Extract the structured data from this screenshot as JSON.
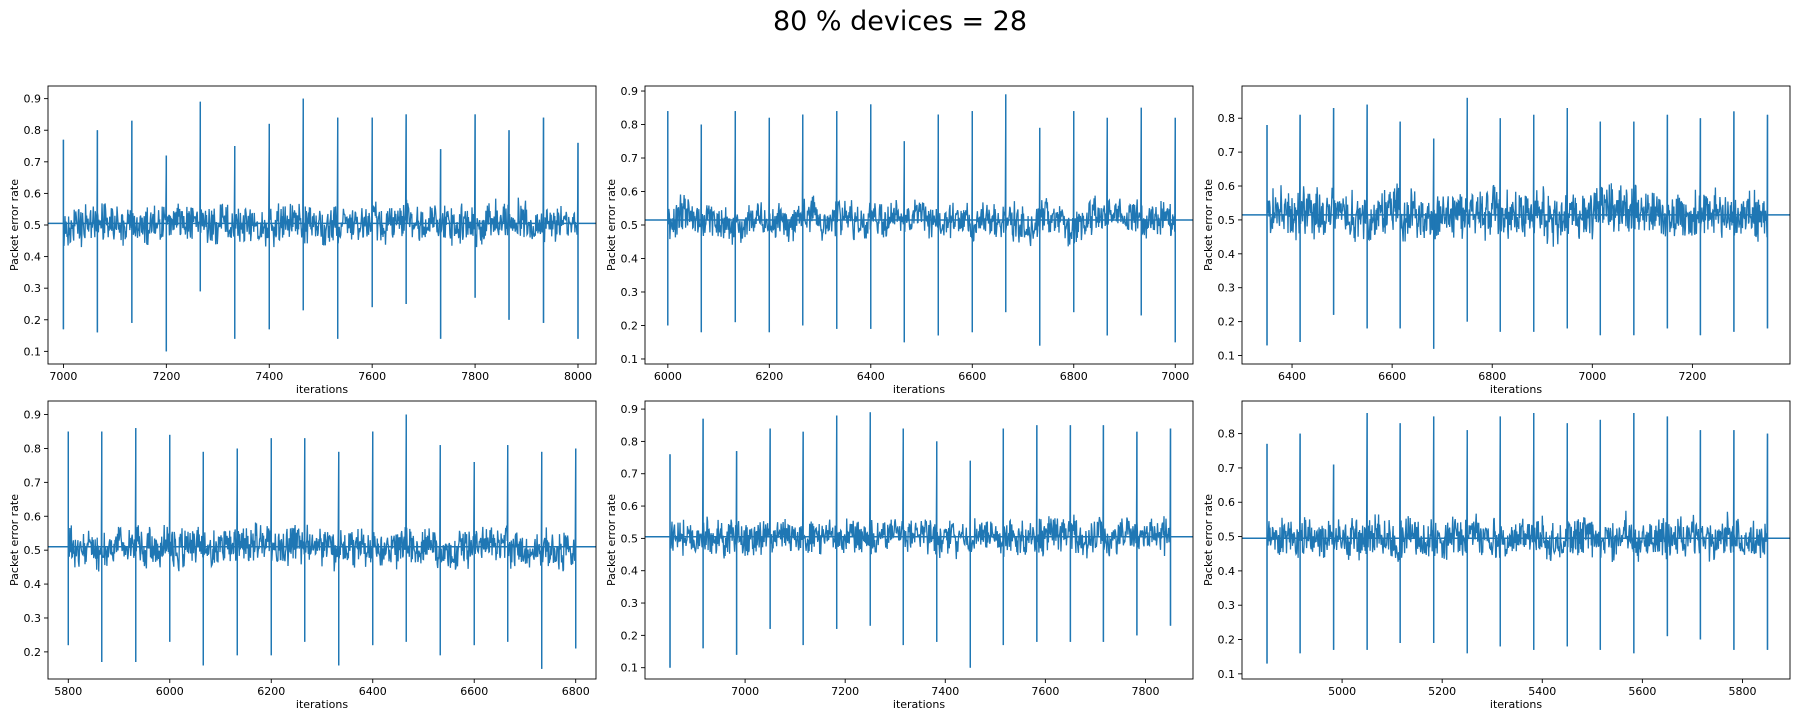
{
  "figure": {
    "title": "80 % devices = 28"
  },
  "colors": {
    "series": "#1f77b4",
    "axis": "#000000",
    "background": "#ffffff"
  },
  "chart_data": [
    {
      "type": "line",
      "xlabel": "iterations",
      "ylabel": "Packet error rate",
      "xlim": [
        6970,
        8035
      ],
      "ylim": [
        0.06,
        0.94
      ],
      "xticks": [
        7000,
        7200,
        7400,
        7600,
        7800,
        8000
      ],
      "yticks": [
        0.1,
        0.2,
        0.3,
        0.4,
        0.5,
        0.6,
        0.7,
        0.8,
        0.9
      ],
      "ytick_labels": [
        "0.1",
        "0.2",
        "0.3",
        "0.4",
        "0.5",
        "0.6",
        "0.7",
        "0.8",
        "0.9"
      ],
      "baseline": 0.505,
      "noise_band": [
        0.43,
        0.63
      ],
      "n_points": 1000,
      "spikes": [
        {
          "x": 7000,
          "low": 0.17,
          "high": 0.77
        },
        {
          "x": 7066,
          "low": 0.16,
          "high": 0.8
        },
        {
          "x": 7133,
          "low": 0.19,
          "high": 0.83
        },
        {
          "x": 7200,
          "low": 0.1,
          "high": 0.72
        },
        {
          "x": 7266,
          "low": 0.29,
          "high": 0.89
        },
        {
          "x": 7333,
          "low": 0.14,
          "high": 0.75
        },
        {
          "x": 7400,
          "low": 0.17,
          "high": 0.82
        },
        {
          "x": 7466,
          "low": 0.23,
          "high": 0.9
        },
        {
          "x": 7533,
          "low": 0.14,
          "high": 0.84
        },
        {
          "x": 7600,
          "low": 0.24,
          "high": 0.84
        },
        {
          "x": 7666,
          "low": 0.25,
          "high": 0.85
        },
        {
          "x": 7733,
          "low": 0.14,
          "high": 0.74
        },
        {
          "x": 7800,
          "low": 0.27,
          "high": 0.85
        },
        {
          "x": 7866,
          "low": 0.2,
          "high": 0.8
        },
        {
          "x": 7933,
          "low": 0.19,
          "high": 0.84
        },
        {
          "x": 8000,
          "low": 0.14,
          "high": 0.76
        }
      ]
    },
    {
      "type": "line",
      "xlabel": "iterations",
      "ylabel": "Packet error rate",
      "xlim": [
        5955,
        7035
      ],
      "ylim": [
        0.085,
        0.915
      ],
      "xticks": [
        6000,
        6200,
        6400,
        6600,
        6800,
        7000
      ],
      "yticks": [
        0.1,
        0.2,
        0.3,
        0.4,
        0.5,
        0.6,
        0.7,
        0.8,
        0.9
      ],
      "ytick_labels": [
        "0.1",
        "0.2",
        "0.3",
        "0.4",
        "0.5",
        "0.6",
        "0.7",
        "0.8",
        "0.9"
      ],
      "baseline": 0.515,
      "noise_band": [
        0.43,
        0.61
      ],
      "n_points": 1000,
      "spikes": [
        {
          "x": 6000,
          "low": 0.2,
          "high": 0.84
        },
        {
          "x": 6066,
          "low": 0.18,
          "high": 0.8
        },
        {
          "x": 6133,
          "low": 0.21,
          "high": 0.84
        },
        {
          "x": 6200,
          "low": 0.18,
          "high": 0.82
        },
        {
          "x": 6266,
          "low": 0.2,
          "high": 0.83
        },
        {
          "x": 6333,
          "low": 0.19,
          "high": 0.84
        },
        {
          "x": 6400,
          "low": 0.19,
          "high": 0.86
        },
        {
          "x": 6466,
          "low": 0.15,
          "high": 0.75
        },
        {
          "x": 6533,
          "low": 0.17,
          "high": 0.83
        },
        {
          "x": 6600,
          "low": 0.18,
          "high": 0.84
        },
        {
          "x": 6666,
          "low": 0.24,
          "high": 0.89
        },
        {
          "x": 6733,
          "low": 0.14,
          "high": 0.79
        },
        {
          "x": 6800,
          "low": 0.24,
          "high": 0.84
        },
        {
          "x": 6866,
          "low": 0.17,
          "high": 0.82
        },
        {
          "x": 6933,
          "low": 0.23,
          "high": 0.85
        },
        {
          "x": 7000,
          "low": 0.15,
          "high": 0.82
        }
      ]
    },
    {
      "type": "line",
      "xlabel": "iterations",
      "ylabel": "Packet error rate",
      "xlim": [
        6300,
        7395
      ],
      "ylim": [
        0.075,
        0.895
      ],
      "xticks": [
        6400,
        6600,
        6800,
        7000,
        7200
      ],
      "yticks": [
        0.1,
        0.2,
        0.3,
        0.4,
        0.5,
        0.6,
        0.7,
        0.8
      ],
      "ytick_labels": [
        "0.1",
        "0.2",
        "0.3",
        "0.4",
        "0.5",
        "0.6",
        "0.7",
        "0.8"
      ],
      "baseline": 0.515,
      "noise_band": [
        0.38,
        0.62
      ],
      "n_points": 1000,
      "spikes": [
        {
          "x": 6350,
          "low": 0.13,
          "high": 0.78
        },
        {
          "x": 6416,
          "low": 0.14,
          "high": 0.81
        },
        {
          "x": 6483,
          "low": 0.22,
          "high": 0.83
        },
        {
          "x": 6550,
          "low": 0.18,
          "high": 0.84
        },
        {
          "x": 6616,
          "low": 0.18,
          "high": 0.79
        },
        {
          "x": 6683,
          "low": 0.12,
          "high": 0.74
        },
        {
          "x": 6750,
          "low": 0.2,
          "high": 0.86
        },
        {
          "x": 6816,
          "low": 0.17,
          "high": 0.8
        },
        {
          "x": 6883,
          "low": 0.17,
          "high": 0.81
        },
        {
          "x": 6950,
          "low": 0.18,
          "high": 0.83
        },
        {
          "x": 7016,
          "low": 0.16,
          "high": 0.79
        },
        {
          "x": 7083,
          "low": 0.16,
          "high": 0.79
        },
        {
          "x": 7150,
          "low": 0.18,
          "high": 0.81
        },
        {
          "x": 7216,
          "low": 0.16,
          "high": 0.8
        },
        {
          "x": 7283,
          "low": 0.17,
          "high": 0.82
        },
        {
          "x": 7350,
          "low": 0.18,
          "high": 0.81
        }
      ]
    },
    {
      "type": "line",
      "xlabel": "iterations",
      "ylabel": "Packet error rate",
      "xlim": [
        5760,
        6840
      ],
      "ylim": [
        0.12,
        0.94
      ],
      "xticks": [
        5800,
        6000,
        6200,
        6400,
        6600,
        6800
      ],
      "yticks": [
        0.2,
        0.3,
        0.4,
        0.5,
        0.6,
        0.7,
        0.8,
        0.9
      ],
      "ytick_labels": [
        "0.2",
        "0.3",
        "0.4",
        "0.5",
        "0.6",
        "0.7",
        "0.8",
        "0.9"
      ],
      "baseline": 0.51,
      "noise_band": [
        0.43,
        0.62
      ],
      "n_points": 1000,
      "spikes": [
        {
          "x": 5800,
          "low": 0.22,
          "high": 0.85
        },
        {
          "x": 5866,
          "low": 0.17,
          "high": 0.85
        },
        {
          "x": 5933,
          "low": 0.17,
          "high": 0.86
        },
        {
          "x": 6000,
          "low": 0.23,
          "high": 0.84
        },
        {
          "x": 6066,
          "low": 0.16,
          "high": 0.79
        },
        {
          "x": 6133,
          "low": 0.19,
          "high": 0.8
        },
        {
          "x": 6200,
          "low": 0.19,
          "high": 0.83
        },
        {
          "x": 6266,
          "low": 0.23,
          "high": 0.83
        },
        {
          "x": 6333,
          "low": 0.16,
          "high": 0.79
        },
        {
          "x": 6400,
          "low": 0.22,
          "high": 0.85
        },
        {
          "x": 6466,
          "low": 0.23,
          "high": 0.9
        },
        {
          "x": 6533,
          "low": 0.19,
          "high": 0.81
        },
        {
          "x": 6600,
          "low": 0.22,
          "high": 0.76
        },
        {
          "x": 6666,
          "low": 0.23,
          "high": 0.81
        },
        {
          "x": 6733,
          "low": 0.15,
          "high": 0.79
        },
        {
          "x": 6800,
          "low": 0.21,
          "high": 0.8
        }
      ]
    },
    {
      "type": "line",
      "xlabel": "iterations",
      "ylabel": "Packet error rate",
      "xlim": [
        6800,
        7895
      ],
      "ylim": [
        0.065,
        0.925
      ],
      "xticks": [
        7000,
        7200,
        7400,
        7600,
        7800
      ],
      "yticks": [
        0.1,
        0.2,
        0.3,
        0.4,
        0.5,
        0.6,
        0.7,
        0.8,
        0.9
      ],
      "ytick_labels": [
        "0.1",
        "0.2",
        "0.3",
        "0.4",
        "0.5",
        "0.6",
        "0.7",
        "0.8",
        "0.9"
      ],
      "baseline": 0.505,
      "noise_band": [
        0.43,
        0.61
      ],
      "n_points": 1000,
      "spikes": [
        {
          "x": 6850,
          "low": 0.1,
          "high": 0.76
        },
        {
          "x": 6916,
          "low": 0.16,
          "high": 0.87
        },
        {
          "x": 6983,
          "low": 0.14,
          "high": 0.77
        },
        {
          "x": 7050,
          "low": 0.22,
          "high": 0.84
        },
        {
          "x": 7116,
          "low": 0.17,
          "high": 0.83
        },
        {
          "x": 7183,
          "low": 0.22,
          "high": 0.88
        },
        {
          "x": 7250,
          "low": 0.23,
          "high": 0.89
        },
        {
          "x": 7316,
          "low": 0.17,
          "high": 0.84
        },
        {
          "x": 7383,
          "low": 0.18,
          "high": 0.8
        },
        {
          "x": 7450,
          "low": 0.1,
          "high": 0.74
        },
        {
          "x": 7516,
          "low": 0.17,
          "high": 0.84
        },
        {
          "x": 7583,
          "low": 0.18,
          "high": 0.85
        },
        {
          "x": 7650,
          "low": 0.18,
          "high": 0.85
        },
        {
          "x": 7716,
          "low": 0.18,
          "high": 0.85
        },
        {
          "x": 7783,
          "low": 0.2,
          "high": 0.83
        },
        {
          "x": 7850,
          "low": 0.23,
          "high": 0.84
        }
      ]
    },
    {
      "type": "line",
      "xlabel": "iterations",
      "ylabel": "Packet error rate",
      "xlim": [
        4800,
        5895
      ],
      "ylim": [
        0.085,
        0.895
      ],
      "xticks": [
        5000,
        5200,
        5400,
        5600,
        5800
      ],
      "yticks": [
        0.1,
        0.2,
        0.3,
        0.4,
        0.5,
        0.6,
        0.7,
        0.8
      ],
      "ytick_labels": [
        "0.1",
        "0.2",
        "0.3",
        "0.4",
        "0.5",
        "0.6",
        "0.7",
        "0.8"
      ],
      "baseline": 0.495,
      "noise_band": [
        0.41,
        0.6
      ],
      "n_points": 1000,
      "spikes": [
        {
          "x": 4850,
          "low": 0.13,
          "high": 0.77
        },
        {
          "x": 4916,
          "low": 0.16,
          "high": 0.8
        },
        {
          "x": 4983,
          "low": 0.17,
          "high": 0.71
        },
        {
          "x": 5050,
          "low": 0.17,
          "high": 0.86
        },
        {
          "x": 5116,
          "low": 0.19,
          "high": 0.83
        },
        {
          "x": 5183,
          "low": 0.19,
          "high": 0.85
        },
        {
          "x": 5250,
          "low": 0.16,
          "high": 0.81
        },
        {
          "x": 5316,
          "low": 0.18,
          "high": 0.85
        },
        {
          "x": 5383,
          "low": 0.17,
          "high": 0.86
        },
        {
          "x": 5450,
          "low": 0.18,
          "high": 0.83
        },
        {
          "x": 5516,
          "low": 0.17,
          "high": 0.84
        },
        {
          "x": 5583,
          "low": 0.16,
          "high": 0.86
        },
        {
          "x": 5650,
          "low": 0.21,
          "high": 0.85
        },
        {
          "x": 5716,
          "low": 0.2,
          "high": 0.81
        },
        {
          "x": 5783,
          "low": 0.17,
          "high": 0.81
        },
        {
          "x": 5850,
          "low": 0.17,
          "high": 0.8
        }
      ]
    }
  ]
}
